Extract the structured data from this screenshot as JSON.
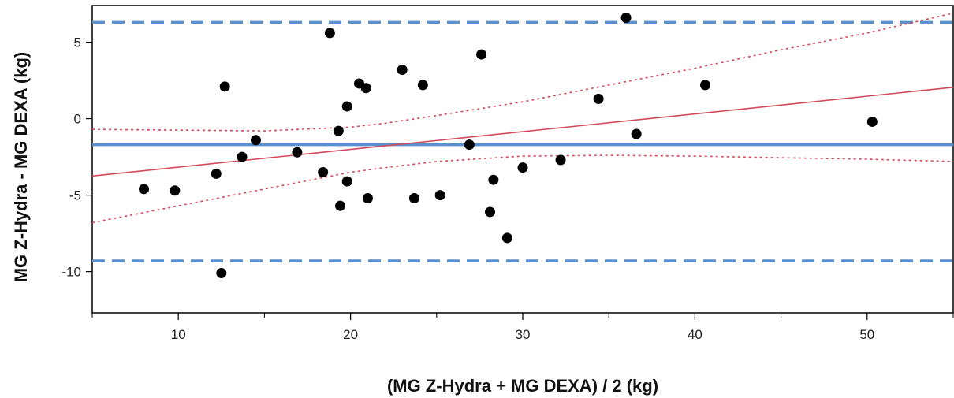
{
  "chart_data": {
    "type": "scatter",
    "title": "",
    "xlabel": "(MG Z-Hydra + MG DEXA) / 2 (kg)",
    "ylabel": "MG Z-Hydra - MG DEXA (kg)",
    "xlim": [
      5,
      55
    ],
    "ylim": [
      -12.7,
      7.4
    ],
    "x_ticks": [
      10,
      20,
      30,
      40,
      50
    ],
    "x_minor_ticks": [
      5,
      15,
      25,
      35,
      45,
      55
    ],
    "y_ticks": [
      5,
      0,
      -5,
      -10
    ],
    "grid": false,
    "points": [
      {
        "x": 8.0,
        "y": -4.6
      },
      {
        "x": 9.8,
        "y": -4.7
      },
      {
        "x": 12.2,
        "y": -3.6
      },
      {
        "x": 12.5,
        "y": -10.1
      },
      {
        "x": 12.7,
        "y": 2.1
      },
      {
        "x": 13.7,
        "y": -2.5
      },
      {
        "x": 14.5,
        "y": -1.4
      },
      {
        "x": 16.9,
        "y": -2.2
      },
      {
        "x": 18.4,
        "y": -3.5
      },
      {
        "x": 18.8,
        "y": 5.6
      },
      {
        "x": 19.3,
        "y": -0.8
      },
      {
        "x": 19.4,
        "y": -5.7
      },
      {
        "x": 19.8,
        "y": 0.8
      },
      {
        "x": 19.8,
        "y": -4.1
      },
      {
        "x": 20.5,
        "y": 2.3
      },
      {
        "x": 20.9,
        "y": 2.0
      },
      {
        "x": 21.0,
        "y": -5.2
      },
      {
        "x": 23.0,
        "y": 3.2
      },
      {
        "x": 23.7,
        "y": -5.2
      },
      {
        "x": 24.2,
        "y": 2.2
      },
      {
        "x": 25.2,
        "y": -5.0
      },
      {
        "x": 26.9,
        "y": -1.7
      },
      {
        "x": 27.6,
        "y": 4.2
      },
      {
        "x": 28.1,
        "y": -6.1
      },
      {
        "x": 28.3,
        "y": -4.0
      },
      {
        "x": 29.1,
        "y": -7.8
      },
      {
        "x": 30.0,
        "y": -3.2
      },
      {
        "x": 32.2,
        "y": -2.7
      },
      {
        "x": 34.4,
        "y": 1.3
      },
      {
        "x": 36.0,
        "y": 6.6
      },
      {
        "x": 36.6,
        "y": -1.0
      },
      {
        "x": 40.6,
        "y": 2.2
      },
      {
        "x": 50.3,
        "y": -0.2
      }
    ],
    "mean_difference": -1.7,
    "upper_limit_of_agreement": 6.3,
    "lower_limit_of_agreement": -9.3,
    "regression_line": {
      "x": [
        5,
        55
      ],
      "y": [
        -3.75,
        2.05
      ]
    },
    "confidence_band_upper": {
      "x": [
        5,
        10,
        15,
        20,
        22,
        25,
        30,
        35,
        40,
        45,
        50,
        55
      ],
      "y": [
        -0.7,
        -0.75,
        -0.8,
        -0.55,
        -0.3,
        0.2,
        1.1,
        2.2,
        3.3,
        4.5,
        5.6,
        6.9
      ]
    },
    "confidence_band_lower": {
      "x": [
        5,
        10,
        15,
        20,
        22,
        25,
        30,
        35,
        40,
        45,
        50,
        55
      ],
      "y": [
        -6.8,
        -5.7,
        -4.6,
        -3.5,
        -3.2,
        -2.8,
        -2.45,
        -2.4,
        -2.45,
        -2.55,
        -2.65,
        -2.8
      ]
    },
    "colors": {
      "points": "#000000",
      "limit_lines": "#5a8fd0",
      "mean_line": "#5a8fd0",
      "regression": "#d44a5a",
      "confidence_band": "#d44a5a",
      "frame": "#000000"
    }
  }
}
